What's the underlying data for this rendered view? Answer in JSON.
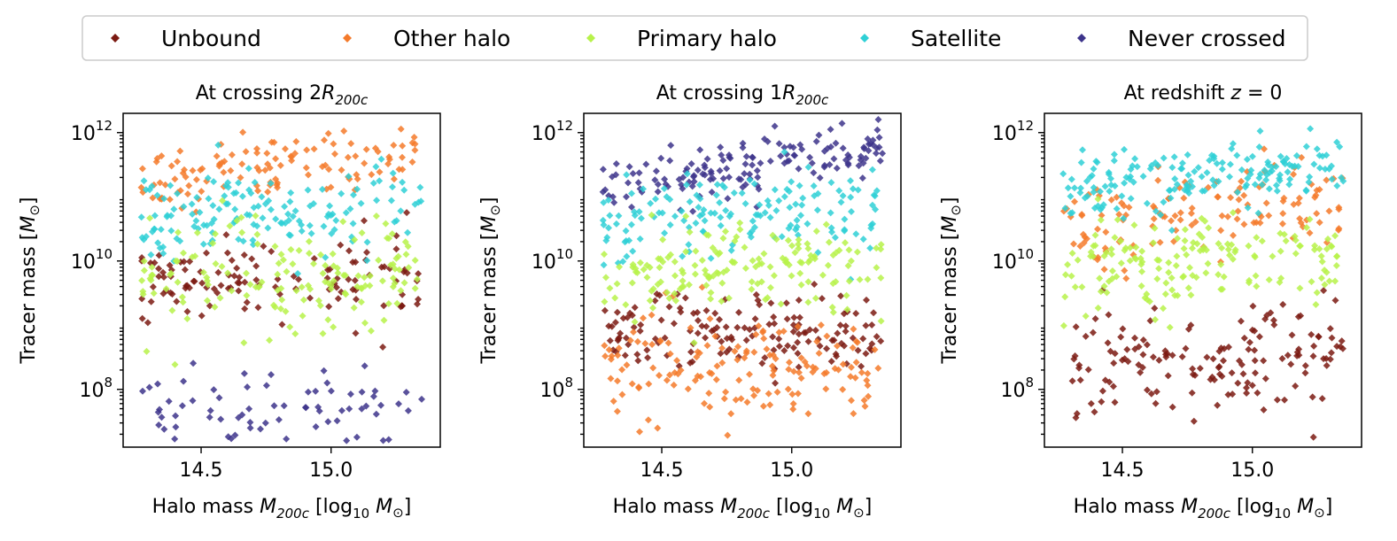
{
  "legend": {
    "placement": "top-center",
    "items": [
      {
        "key": "unbound",
        "label": "Unbound",
        "color": "#7b1a12"
      },
      {
        "key": "other",
        "label": "Other halo",
        "color": "#f47a2a"
      },
      {
        "key": "primary",
        "label": "Primary halo",
        "color": "#b7f24a"
      },
      {
        "key": "satellite",
        "label": "Satellite",
        "color": "#2fd0d6"
      },
      {
        "key": "never",
        "label": "Never crossed",
        "color": "#3d348b"
      }
    ]
  },
  "chart_data": [
    {
      "type": "scatter",
      "title_parts": {
        "text": "At crossing 2",
        "italic": "R",
        "sub": "200c",
        "tail": ""
      },
      "xlabel_parts": {
        "text": "Halo mass ",
        "italic": "M",
        "sub": "200c",
        "tail": " [log",
        "sub2": "10",
        "tail2": " M",
        "odot": "⊙",
        "end": "]"
      },
      "ylabel_parts": {
        "text": "Tracer mass [",
        "italic": "M",
        "odot": "⊙",
        "end": "]"
      },
      "xlim": [
        14.2,
        15.42
      ],
      "ylim_log10": [
        7.1,
        12.3
      ],
      "y_scale": "log",
      "xticks": [
        {
          "value": 14.5,
          "label": "14.5"
        },
        {
          "value": 15.0,
          "label": "15.0"
        }
      ],
      "yticks": [
        {
          "exp": 8,
          "base": "10",
          "sup": "8"
        },
        {
          "exp": 10,
          "base": "10",
          "sup": "10"
        },
        {
          "exp": 12,
          "base": "10",
          "sup": "12"
        }
      ],
      "grid": false,
      "series_bands": {
        "unbound": {
          "center": [
            9.6,
            9.75
          ],
          "spread": 0.35,
          "count": 120
        },
        "other": {
          "center": [
            11.2,
            11.75
          ],
          "spread": 0.25,
          "count": 120
        },
        "primary": {
          "center": [
            9.7,
            9.8
          ],
          "spread": 0.45,
          "count": 150
        },
        "satellite": {
          "center": [
            10.7,
            10.9
          ],
          "spread": 0.35,
          "count": 150
        },
        "never": {
          "center": [
            7.6,
            7.7
          ],
          "spread": 0.4,
          "count": 70
        }
      }
    },
    {
      "type": "scatter",
      "title_parts": {
        "text": "At crossing 1",
        "italic": "R",
        "sub": "200c",
        "tail": ""
      },
      "xlabel_parts": {
        "text": "Halo mass ",
        "italic": "M",
        "sub": "200c",
        "tail": " [log",
        "sub2": "10",
        "tail2": " M",
        "odot": "⊙",
        "end": "]"
      },
      "ylabel_parts": {
        "text": "Tracer mass [",
        "italic": "M",
        "odot": "⊙",
        "end": "]"
      },
      "xlim": [
        14.2,
        15.42
      ],
      "ylim_log10": [
        7.1,
        12.3
      ],
      "y_scale": "log",
      "xticks": [
        {
          "value": 14.5,
          "label": "14.5"
        },
        {
          "value": 15.0,
          "label": "15.0"
        }
      ],
      "yticks": [
        {
          "exp": 8,
          "base": "10",
          "sup": "8"
        },
        {
          "exp": 10,
          "base": "10",
          "sup": "10"
        },
        {
          "exp": 12,
          "base": "10",
          "sup": "12"
        }
      ],
      "grid": false,
      "series_bands": {
        "unbound": {
          "center": [
            8.9,
            8.85
          ],
          "spread": 0.35,
          "count": 150
        },
        "other": {
          "center": [
            8.4,
            8.35
          ],
          "spread": 0.45,
          "count": 150
        },
        "primary": {
          "center": [
            9.8,
            9.9
          ],
          "spread": 0.35,
          "count": 160
        },
        "satellite": {
          "center": [
            10.6,
            10.85
          ],
          "spread": 0.35,
          "count": 150
        },
        "never": {
          "center": [
            11.2,
            11.75
          ],
          "spread": 0.22,
          "count": 150
        }
      }
    },
    {
      "type": "scatter",
      "title_parts": {
        "text": "At redshift ",
        "italic": "z",
        "sub": "",
        "tail": " = 0"
      },
      "xlabel_parts": {
        "text": "Halo mass ",
        "italic": "M",
        "sub": "200c",
        "tail": " [log",
        "sub2": "10",
        "tail2": " M",
        "odot": "⊙",
        "end": "]"
      },
      "ylabel_parts": {
        "text": "Tracer mass [",
        "italic": "M",
        "odot": "⊙",
        "end": "]"
      },
      "xlim": [
        14.2,
        15.42
      ],
      "ylim_log10": [
        7.1,
        12.3
      ],
      "y_scale": "log",
      "xticks": [
        {
          "value": 14.5,
          "label": "14.5"
        },
        {
          "value": 15.0,
          "label": "15.0"
        }
      ],
      "yticks": [
        {
          "exp": 8,
          "base": "10",
          "sup": "8"
        },
        {
          "exp": 10,
          "base": "10",
          "sup": "10"
        },
        {
          "exp": 12,
          "base": "10",
          "sup": "12"
        }
      ],
      "grid": false,
      "series_bands": {
        "unbound": {
          "center": [
            8.45,
            8.55
          ],
          "spread": 0.45,
          "count": 150
        },
        "other": {
          "center": [
            10.5,
            10.95
          ],
          "spread": 0.35,
          "count": 130
        },
        "primary": {
          "center": [
            9.9,
            10.05
          ],
          "spread": 0.35,
          "count": 160
        },
        "satellite": {
          "center": [
            11.15,
            11.55
          ],
          "spread": 0.25,
          "count": 170
        },
        "never": {
          "center": [
            11.0,
            11.0
          ],
          "spread": 0.0,
          "count": 0
        }
      }
    }
  ]
}
